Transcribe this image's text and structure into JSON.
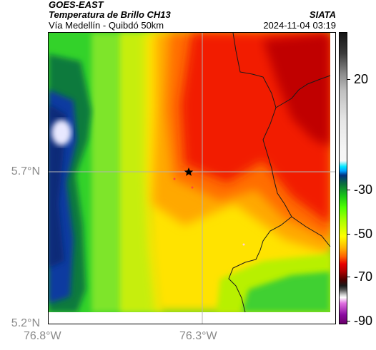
{
  "header": {
    "satellite": "GOES-EAST",
    "product": "Temperatura de Brillo CH13",
    "location": "Vía Medellín - Quibdó 50km",
    "organization": "SIATA",
    "timestamp": "2024-11-04 03:19"
  },
  "axes": {
    "y_ticks": [
      "5.7°N",
      "5.2°N"
    ],
    "x_ticks": [
      "76.8°W",
      "76.3°W"
    ]
  },
  "colorbar": {
    "labels": [
      "20",
      "-30",
      "-50",
      "-70",
      "-90"
    ],
    "values": [
      20,
      -30,
      -50,
      -70,
      -90
    ],
    "range": [
      -95,
      40
    ]
  },
  "map": {
    "marker": "star-icon",
    "grid": true,
    "colors": {
      "cold_cloud": "#cf0000",
      "mid_cloud": "#ff8c00",
      "warm_cloud": "#ffe000",
      "clear_land": "#1fce1f",
      "valley": "#0a2a7a"
    }
  }
}
